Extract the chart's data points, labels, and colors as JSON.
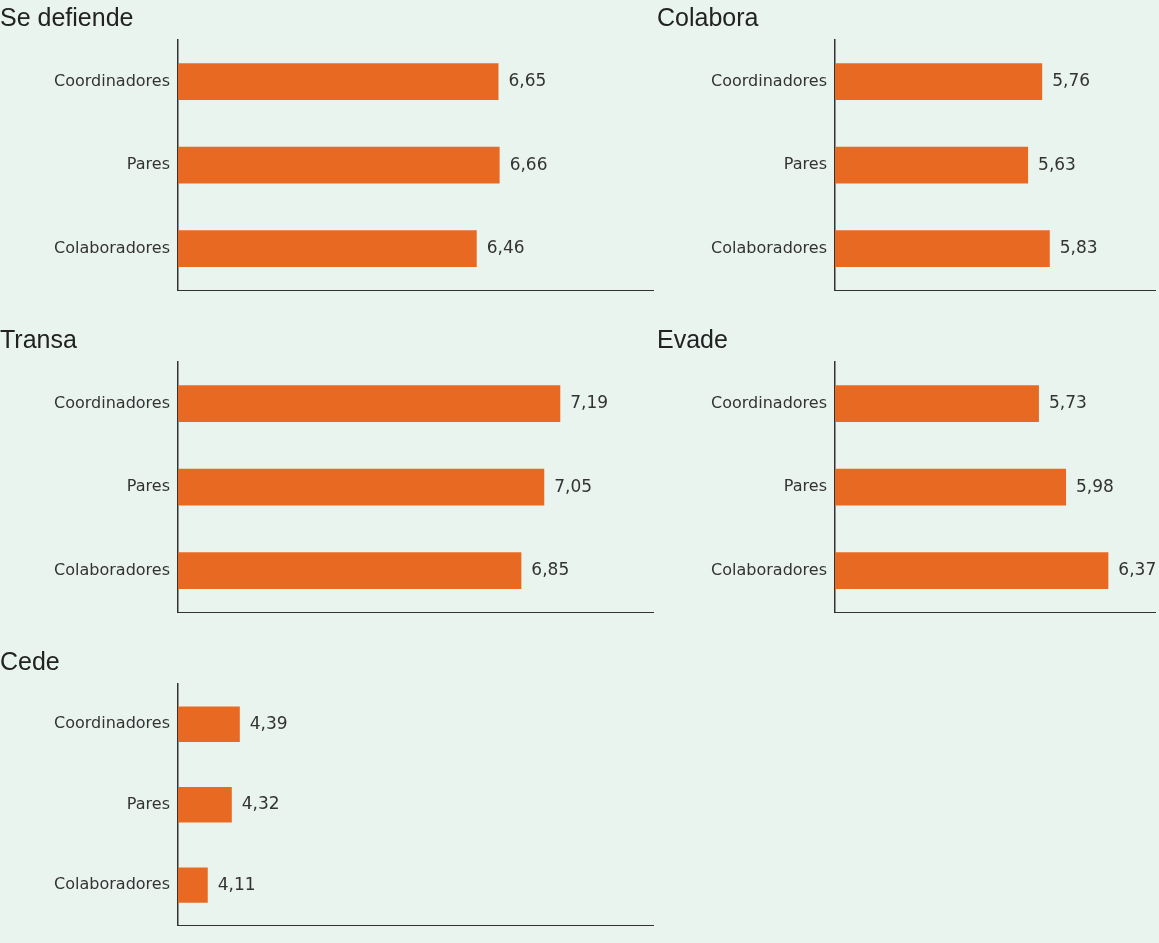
{
  "chart_data": [
    {
      "type": "bar",
      "orientation": "horizontal",
      "title": "Se defiende",
      "categories": [
        "Coordinadores",
        "Pares",
        "Colaboradores"
      ],
      "values": [
        6.65,
        6.66,
        6.46
      ],
      "value_labels": [
        "6,65",
        "6,66",
        "6,46"
      ],
      "color": "#e86a22",
      "xlim": [
        3.85,
        8.0
      ],
      "grid": false,
      "legend": false,
      "tick_labels": "y"
    },
    {
      "type": "bar",
      "orientation": "horizontal",
      "title": "Colabora",
      "categories": [
        "Coordinadores",
        "Pares",
        "Colaboradores"
      ],
      "values": [
        5.76,
        5.63,
        5.83
      ],
      "value_labels": [
        "5,76",
        "5,63",
        "5,83"
      ],
      "color": "#e86a22",
      "xlim": [
        3.85,
        6.8
      ],
      "grid": false,
      "legend": false,
      "tick_labels": "y"
    },
    {
      "type": "bar",
      "orientation": "horizontal",
      "title": "Transa",
      "categories": [
        "Coordinadores",
        "Pares",
        "Colaboradores"
      ],
      "values": [
        7.19,
        7.05,
        6.85
      ],
      "value_labels": [
        "7,19",
        "7,05",
        "6,85"
      ],
      "color": "#e86a22",
      "xlim": [
        3.85,
        8.0
      ],
      "grid": false,
      "legend": false,
      "tick_labels": "y"
    },
    {
      "type": "bar",
      "orientation": "horizontal",
      "title": "Evade",
      "categories": [
        "Coordinadores",
        "Pares",
        "Colaboradores"
      ],
      "values": [
        5.73,
        5.98,
        6.37
      ],
      "value_labels": [
        "5,73",
        "5,98",
        "6,37"
      ],
      "color": "#e86a22",
      "xlim": [
        3.85,
        6.8
      ],
      "grid": false,
      "legend": false,
      "tick_labels": "y"
    },
    {
      "type": "bar",
      "orientation": "horizontal",
      "title": "Cede",
      "categories": [
        "Coordinadores",
        "Pares",
        "Colaboradores"
      ],
      "values": [
        4.39,
        4.32,
        4.11
      ],
      "value_labels": [
        "4,39",
        "4,32",
        "4,11"
      ],
      "color": "#e86a22",
      "xlim": [
        3.85,
        8.0
      ],
      "grid": false,
      "legend": false,
      "tick_labels": "y"
    }
  ]
}
